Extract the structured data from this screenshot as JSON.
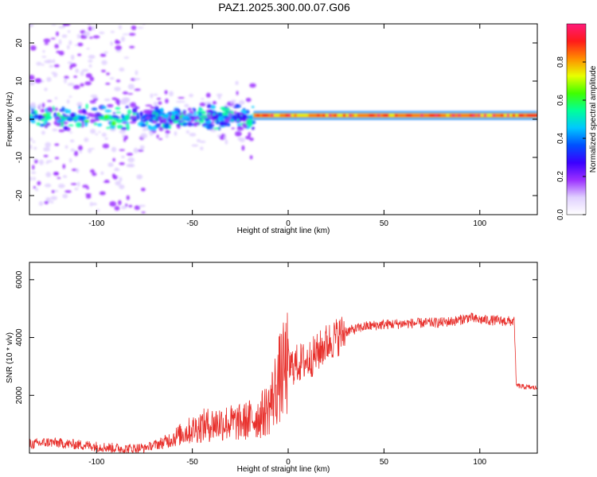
{
  "title": "PAZ1.2025.300.00.07.G06",
  "chart_data": [
    {
      "type": "heatmap",
      "name": "spectrogram",
      "xlabel": "Height of straight line (km)",
      "ylabel": "Frequency (Hz)",
      "xlim": [
        -135,
        130
      ],
      "ylim": [
        -25,
        25
      ],
      "xticks": [
        -100,
        -50,
        0,
        50,
        100
      ],
      "yticks": [
        -20,
        -10,
        0,
        10,
        20
      ],
      "colorbar": {
        "label": "Normalized spectral amplitude",
        "range": [
          0,
          1
        ],
        "ticks": [
          0.0,
          0.2,
          0.4,
          0.6,
          0.8
        ],
        "colors": [
          "#ffffff",
          "#e0d0ff",
          "#9b30ff",
          "#3a00ff",
          "#0050ff",
          "#00c8ff",
          "#00ff9a",
          "#40ff00",
          "#e8ff00",
          "#ff8c00",
          "#ff1a1a",
          "#ff1a7a"
        ]
      },
      "segments": [
        {
          "x_start": -135,
          "x_end": -18,
          "center_freq_hz": 0.5,
          "bandwidth_hz": 6,
          "amplitude": 0.3,
          "description_noise": "scattered"
        },
        {
          "x_start": -18,
          "x_end": 130,
          "center_freq_hz": 1.0,
          "bandwidth_hz": 1.5,
          "amplitude": 0.95
        }
      ]
    },
    {
      "type": "line",
      "name": "snr",
      "xlabel": "Height of straight line (km)",
      "ylabel": "SNR (10 * v/v)",
      "xlim": [
        -135,
        130
      ],
      "ylim": [
        0,
        6600
      ],
      "xticks": [
        -100,
        -50,
        0,
        50,
        100
      ],
      "yticks": [
        2000,
        4000,
        6000
      ],
      "color": "#e8302c",
      "x": [
        -135,
        -125,
        -115,
        -105,
        -95,
        -85,
        -75,
        -65,
        -55,
        -45,
        -35,
        -25,
        -20,
        -15,
        -10,
        -5,
        0,
        5,
        10,
        15,
        20,
        25,
        30,
        40,
        50,
        60,
        70,
        80,
        88,
        92,
        95,
        98,
        105,
        110,
        118,
        119,
        122,
        130
      ],
      "y": [
        300,
        380,
        320,
        270,
        200,
        150,
        180,
        350,
        650,
        900,
        1000,
        1000,
        1100,
        1200,
        1500,
        2400,
        2950,
        3100,
        3200,
        3450,
        3800,
        4000,
        4200,
        4380,
        4450,
        4480,
        4500,
        4520,
        4580,
        4650,
        4700,
        4620,
        4600,
        4580,
        4550,
        2350,
        2300,
        2250
      ]
    }
  ]
}
